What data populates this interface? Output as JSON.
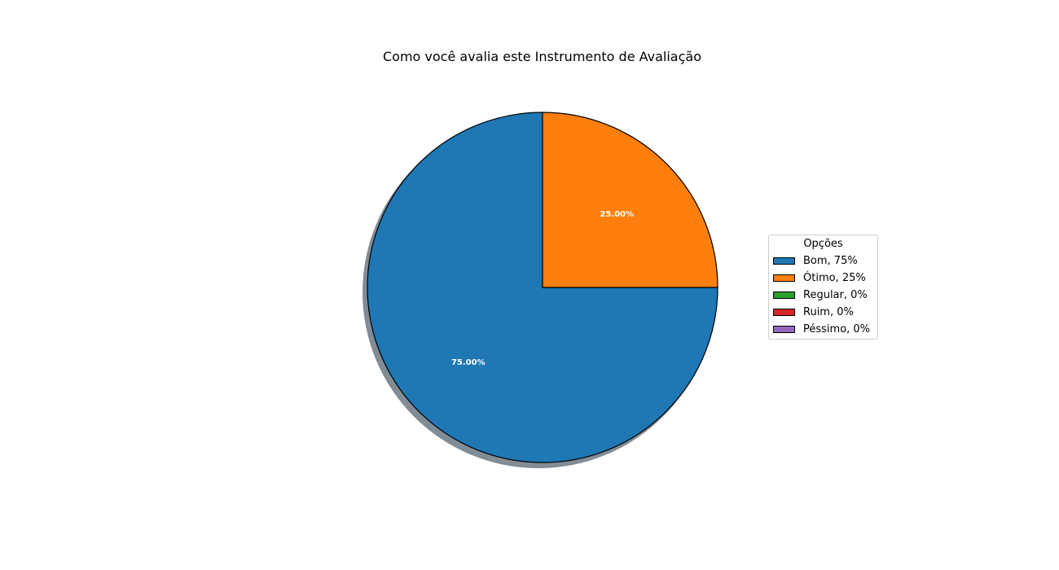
{
  "chart_data": {
    "type": "pie",
    "title": "Como você avalia este Instrumento de Avaliação",
    "legend_title": "Opções",
    "legend_placement": "right",
    "shadow": true,
    "start_angle_deg": 90,
    "direction": "clockwise-from-top",
    "slices": [
      {
        "label": "Bom, 75%",
        "value": 75,
        "color": "#1f77b4",
        "pct_label": "75.00%"
      },
      {
        "label": "Ótimo, 25%",
        "value": 25,
        "color": "#ff7f0e",
        "pct_label": "25.00%"
      },
      {
        "label": "Regular, 0%",
        "value": 0,
        "color": "#2ca02c",
        "pct_label": ""
      },
      {
        "label": "Ruim, 0%",
        "value": 0,
        "color": "#d62728",
        "pct_label": ""
      },
      {
        "label": "Péssimo, 0%",
        "value": 0,
        "color": "#9467bd",
        "pct_label": ""
      }
    ]
  }
}
